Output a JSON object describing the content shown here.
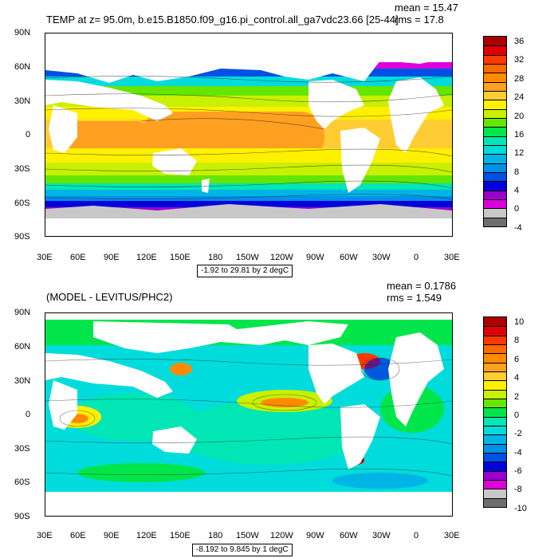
{
  "top": {
    "title": "TEMP at z=  95.0m, b.e15.B1850.f09_g16.pi_control.all_ga7vdc23.66 [25-44]",
    "mean": "mean = 15.47",
    "rms": "rms = 17.8",
    "range": "-1.92 to 29.81 by 2 degC",
    "colorbar": {
      "colors": [
        "#6e6e6e",
        "#c8c8c8",
        "#dd00dd",
        "#9a00cc",
        "#0000dd",
        "#0050e6",
        "#0090e8",
        "#00b4e6",
        "#00dcdc",
        "#00e6b4",
        "#00e64a",
        "#64e600",
        "#c8f000",
        "#fff000",
        "#ffcc33",
        "#ffa020",
        "#ff8a00",
        "#ff6a00",
        "#ff3a00",
        "#e00000",
        "#aa0000"
      ],
      "labels": [
        "36",
        "32",
        "28",
        "24",
        "20",
        "16",
        "12",
        "8",
        "4",
        "0",
        "-4"
      ]
    }
  },
  "bottom": {
    "title": "(MODEL - LEVITUS/PHC2)",
    "mean": "mean = 0.1786",
    "rms": "rms = 1.549",
    "range": "-8.192 to 9.845 by 1 degC",
    "colorbar": {
      "colors": [
        "#6e6e6e",
        "#c8c8c8",
        "#dd00dd",
        "#9a00cc",
        "#0000dd",
        "#0050e6",
        "#0090e8",
        "#00b4e6",
        "#00dcdc",
        "#00e6b4",
        "#00e64a",
        "#64e600",
        "#c8f000",
        "#fff000",
        "#ffcc33",
        "#ffa020",
        "#ff8a00",
        "#ff6a00",
        "#ff3a00",
        "#e00000",
        "#aa0000"
      ],
      "labels": [
        "10",
        "8",
        "6",
        "4",
        "2",
        "0",
        "-2",
        "-4",
        "-6",
        "-8",
        "-10"
      ]
    }
  },
  "lat_labels": [
    "90N",
    "60N",
    "30N",
    "0",
    "30S",
    "60S",
    "90S"
  ],
  "lon_labels": [
    "30E",
    "60E",
    "90E",
    "120E",
    "150E",
    "180",
    "150W",
    "120W",
    "90W",
    "60W",
    "30W",
    "0",
    "30E"
  ]
}
